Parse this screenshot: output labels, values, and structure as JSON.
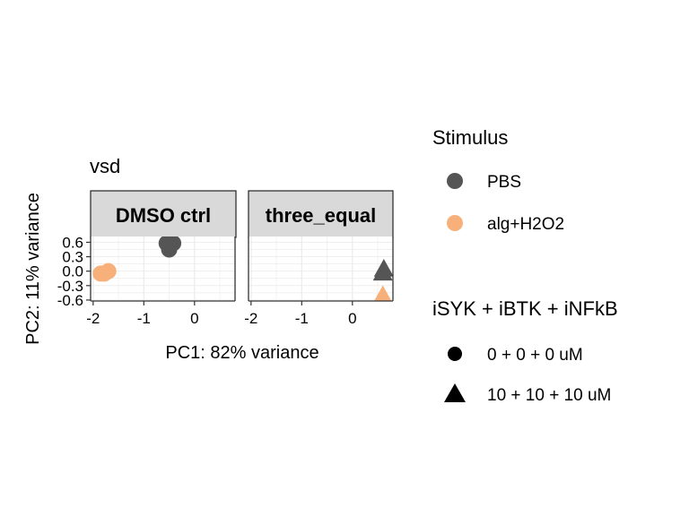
{
  "chart_data": {
    "type": "scatter",
    "title": "vsd",
    "xlabel": "PC1: 82% variance",
    "ylabel": "PC2: 11% variance",
    "xlim": [
      -2.05,
      0.8
    ],
    "ylim": [
      -0.62,
      0.72
    ],
    "x_ticks": [
      -2,
      -1,
      0
    ],
    "x_tick_labels": [
      "-2",
      "-1",
      "0"
    ],
    "y_ticks": [
      0.6,
      0.3,
      0.0,
      -0.3,
      -0.6
    ],
    "y_tick_labels": [
      "0.6",
      "0.3",
      "0.0",
      "-0.3",
      "-0.6"
    ],
    "grid": true,
    "legend_position": "right",
    "facets": [
      {
        "label": "DMSO ctrl",
        "points": [
          {
            "x": -0.55,
            "y": 0.58,
            "stimulus": "PBS",
            "dose": "0 + 0 + 0 uM"
          },
          {
            "x": -0.42,
            "y": 0.58,
            "stimulus": "PBS",
            "dose": "0 + 0 + 0 uM"
          },
          {
            "x": -0.5,
            "y": 0.45,
            "stimulus": "PBS",
            "dose": "0 + 0 + 0 uM"
          },
          {
            "x": -1.7,
            "y": 0.0,
            "stimulus": "alg+H2O2",
            "dose": "0 + 0 + 0 uM"
          },
          {
            "x": -1.78,
            "y": -0.05,
            "stimulus": "alg+H2O2",
            "dose": "0 + 0 + 0 uM"
          },
          {
            "x": -1.85,
            "y": -0.05,
            "stimulus": "alg+H2O2",
            "dose": "0 + 0 + 0 uM"
          }
        ]
      },
      {
        "label": "three_equal",
        "points": [
          {
            "x": 0.62,
            "y": 0.05,
            "stimulus": "PBS",
            "dose": "10 + 10 + 10 uM"
          },
          {
            "x": 0.6,
            "y": -0.03,
            "stimulus": "PBS",
            "dose": "10 + 10 + 10 uM"
          },
          {
            "x": 0.6,
            "y": -0.5,
            "stimulus": "alg+H2O2",
            "dose": "10 + 10 + 10 uM"
          }
        ]
      }
    ],
    "legends": [
      {
        "title": "Stimulus",
        "items": [
          {
            "label": "PBS",
            "color": "#555555",
            "shape": "circle"
          },
          {
            "label": "alg+H2O2",
            "color": "#F8B07A",
            "shape": "circle"
          }
        ]
      },
      {
        "title": "iSYK + iBTK + iNFkB",
        "items": [
          {
            "label": "0 + 0 + 0 uM",
            "color": "#000000",
            "shape": "circle"
          },
          {
            "label": "10 + 10 + 10 uM",
            "color": "#000000",
            "shape": "triangle"
          }
        ]
      }
    ],
    "colors": {
      "PBS": "#555555",
      "alg+H2O2": "#F8B07A"
    },
    "shapes": {
      "0 + 0 + 0 uM": "circle",
      "10 + 10 + 10 uM": "triangle"
    }
  }
}
